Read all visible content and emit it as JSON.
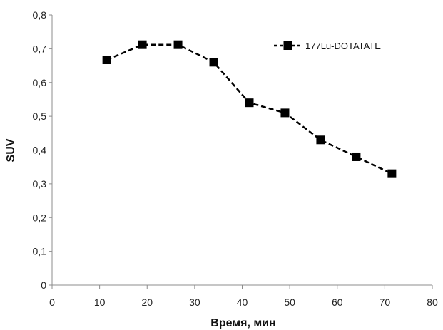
{
  "chart_data": {
    "type": "line",
    "xlabel": "Время, мин",
    "ylabel": "SUV",
    "xlim": [
      0,
      80
    ],
    "ylim": [
      0,
      0.8
    ],
    "x_ticks": [
      0,
      10,
      20,
      30,
      40,
      50,
      60,
      70,
      80
    ],
    "x_tick_labels": [
      "0",
      "10",
      "20",
      "30",
      "40",
      "50",
      "60",
      "70",
      "80"
    ],
    "y_ticks": [
      0,
      0.1,
      0.2,
      0.3,
      0.4,
      0.5,
      0.6,
      0.7,
      0.8
    ],
    "y_tick_labels": [
      "0",
      "0,1",
      "0,2",
      "0,3",
      "0,4",
      "0,5",
      "0,6",
      "0,7",
      "0,8"
    ],
    "grid": false,
    "legend_position": "top-right",
    "series": [
      {
        "name": "177Lu-DOTATATE",
        "color": "#000000",
        "line_style": "dashed",
        "marker": "square",
        "x": [
          11.5,
          19.0,
          26.5,
          34.0,
          41.5,
          49.0,
          56.5,
          64.0,
          71.5
        ],
        "y": [
          0.667,
          0.712,
          0.712,
          0.66,
          0.54,
          0.51,
          0.43,
          0.38,
          0.33
        ]
      }
    ]
  }
}
